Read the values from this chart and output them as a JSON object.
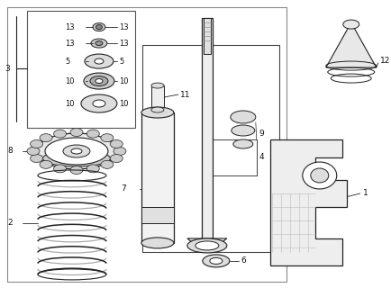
{
  "bg_color": "#ffffff",
  "line_color": "#222222",
  "fig_width": 4.35,
  "fig_height": 3.2,
  "dpi": 100
}
